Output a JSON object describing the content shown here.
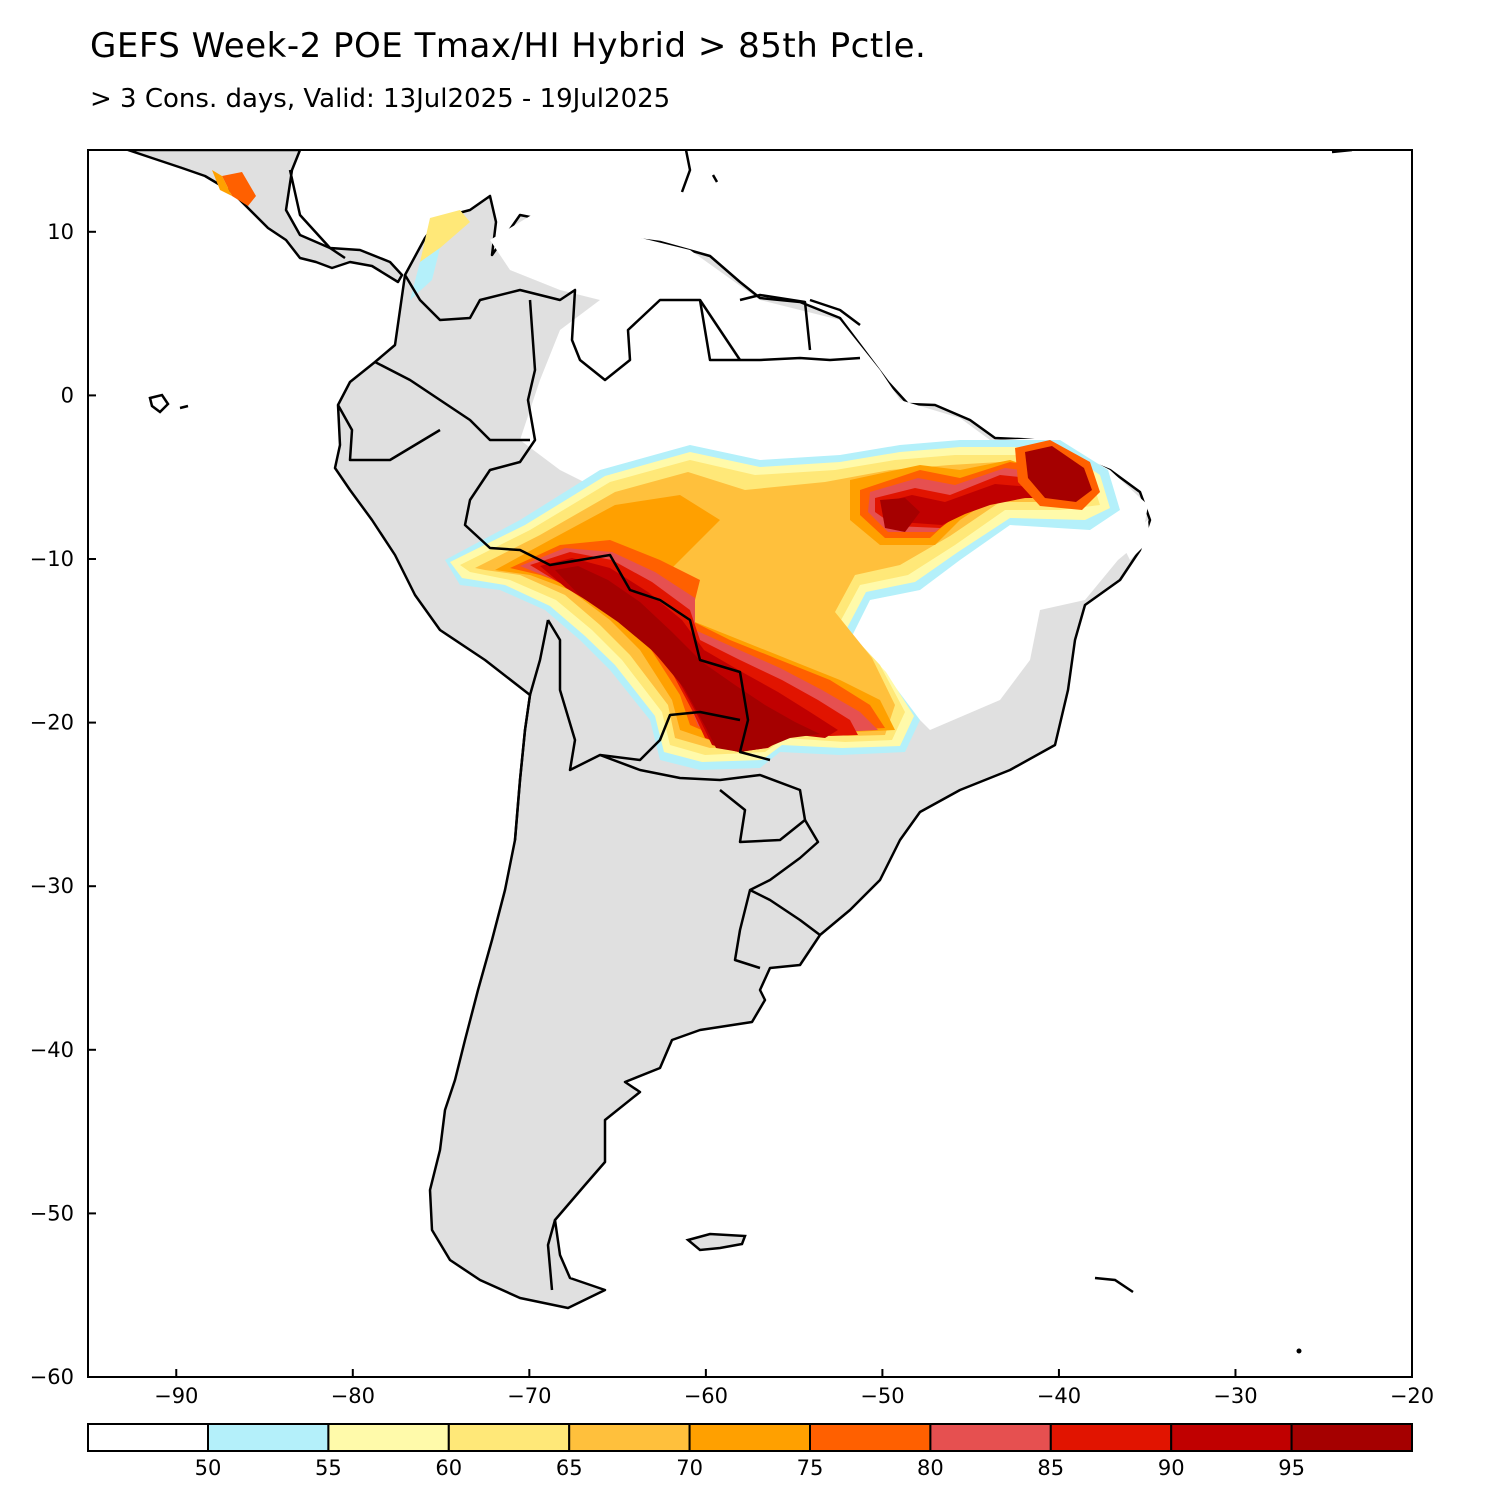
{
  "title": "GEFS Week-2 POE Tmax/HI Hybrid > 85th Pctle.",
  "subtitle": "> 3 Cons. days, Valid: 13Jul2025 - 19Jul2025",
  "map": {
    "region": "South America",
    "lon_range": [
      -95,
      -20
    ],
    "lat_range": [
      -60,
      15
    ],
    "x_ticks": [
      "-90",
      "-80",
      "-70",
      "-60",
      "-50",
      "-40",
      "-30",
      "-20"
    ],
    "x_tick_values": [
      -90,
      -80,
      -70,
      -60,
      -50,
      -40,
      -30,
      -20
    ],
    "y_ticks": [
      "10",
      "0",
      "-10",
      "-20",
      "-30",
      "-40",
      "-50",
      "-60"
    ],
    "y_tick_values": [
      10,
      0,
      -10,
      -20,
      -30,
      -40,
      -50,
      -60
    ],
    "land_color": "#e0e0e0",
    "hot_region_core_lon_lat": [
      [
        -60,
        -18
      ],
      [
        -38,
        -5
      ]
    ]
  },
  "colorbar": {
    "labels": [
      "50",
      "55",
      "60",
      "65",
      "70",
      "75",
      "80",
      "85",
      "90",
      "95"
    ],
    "colors": [
      "#ffffff",
      "#b4f0fa",
      "#fffaaa",
      "#ffe878",
      "#ffc03c",
      "#ffa000",
      "#ff6000",
      "#e65050",
      "#e11400",
      "#c00000",
      "#a50000"
    ]
  }
}
